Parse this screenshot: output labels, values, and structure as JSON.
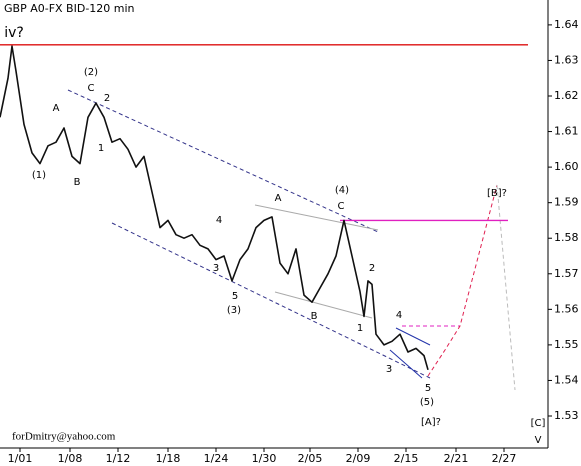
{
  "chart_data": {
    "type": "line",
    "title": "GBP A0-FX BID-120 min",
    "footer": "forDmitry@yahoo.com",
    "color": "#111111",
    "x": [
      0,
      2,
      3,
      4,
      6,
      8,
      10,
      12,
      14,
      16,
      18,
      20,
      22,
      24,
      26,
      28,
      30,
      32,
      34,
      36,
      38,
      40,
      42,
      44,
      46,
      48,
      50,
      52,
      54,
      56,
      58,
      60,
      62,
      64,
      66,
      68,
      70,
      72,
      74,
      76,
      78,
      80,
      82,
      84,
      86,
      88,
      90,
      91,
      92,
      93,
      94,
      96,
      98,
      100,
      102,
      104,
      106,
      107
    ],
    "values": [
      1.614,
      1.625,
      1.634,
      1.627,
      1.612,
      1.604,
      1.601,
      1.606,
      1.607,
      1.611,
      1.603,
      1.601,
      1.614,
      1.618,
      1.614,
      1.607,
      1.608,
      1.605,
      1.6,
      1.603,
      1.593,
      1.583,
      1.585,
      1.581,
      1.58,
      1.581,
      1.578,
      1.577,
      1.574,
      1.575,
      1.568,
      1.574,
      1.577,
      1.583,
      1.585,
      1.586,
      1.573,
      1.57,
      1.577,
      1.564,
      1.562,
      1.566,
      1.57,
      1.575,
      1.585,
      1.575,
      1.565,
      1.558,
      1.568,
      1.567,
      1.553,
      1.55,
      1.551,
      1.553,
      1.548,
      1.549,
      1.547,
      1.543
    ],
    "xlim": [
      0,
      137
    ],
    "xticks": [
      {
        "value": 5,
        "label": "1/01"
      },
      {
        "value": 17.5,
        "label": "1/08"
      },
      {
        "value": 29.5,
        "label": "1/12"
      },
      {
        "value": 42,
        "label": "1/18"
      },
      {
        "value": 54,
        "label": "1/24"
      },
      {
        "value": 66,
        "label": "1/30"
      },
      {
        "value": 77.5,
        "label": "2/05"
      },
      {
        "value": 89.5,
        "label": "2/09"
      },
      {
        "value": 101.5,
        "label": "2/15"
      },
      {
        "value": 114,
        "label": "2/21"
      },
      {
        "value": 126,
        "label": "2/27"
      }
    ],
    "ylim": [
      1.521,
      1.647
    ],
    "yticks": [
      1.53,
      1.54,
      1.55,
      1.56,
      1.57,
      1.58,
      1.59,
      {
        "value": 1.6,
        "label": "1.60"
      },
      1.61,
      1.62,
      1.63,
      1.64
    ],
    "levels": [
      {
        "value": 1.6344,
        "color": "#dd1111"
      },
      {
        "value": 1.585,
        "color": "#e020c0"
      }
    ],
    "annotations": [
      {
        "text": "iv?",
        "color": "#c62020"
      },
      {
        "text": "(2)",
        "color": "#1a1a6e"
      },
      {
        "text": "C",
        "color": "#8b1a1a"
      },
      {
        "text": "A",
        "color": "#8b1a1a"
      },
      {
        "text": "2",
        "color": "#8b1a1a"
      },
      {
        "text": "1",
        "color": "#8b1a1a"
      },
      {
        "text": "B",
        "color": "#8b1a1a"
      },
      {
        "text": "(1)",
        "color": "#1a1a6e"
      },
      {
        "text": "4",
        "color": "#8b1a1a"
      },
      {
        "text": "3",
        "color": "#8b1a1a"
      },
      {
        "text": "5",
        "color": "#8b1a1a"
      },
      {
        "text": "(3)",
        "color": "#1a1a6e"
      },
      {
        "text": "A",
        "color": "#8b1a1a"
      },
      {
        "text": "(4)",
        "color": "#1a1a6e"
      },
      {
        "text": "C",
        "color": "#8b1a1a"
      },
      {
        "text": "B",
        "color": "#8b1a1a"
      },
      {
        "text": "1",
        "color": "#8b1a1a"
      },
      {
        "text": "2",
        "color": "#8b1a1a"
      },
      {
        "text": "4",
        "color": "#8b1a1a"
      },
      {
        "text": "3",
        "color": "#8b1a1a"
      },
      {
        "text": "5",
        "color": "#8b1a1a"
      },
      {
        "text": "(5)",
        "color": "#1a1a6e"
      },
      {
        "text": "[A]?",
        "color": "#2a8a2a"
      },
      {
        "text": "[B]?",
        "color": "#2a8a2a"
      },
      {
        "text": "[C]",
        "color": "#2a8a2a"
      },
      {
        "text": "V",
        "color": "#8b1a1a"
      }
    ]
  }
}
